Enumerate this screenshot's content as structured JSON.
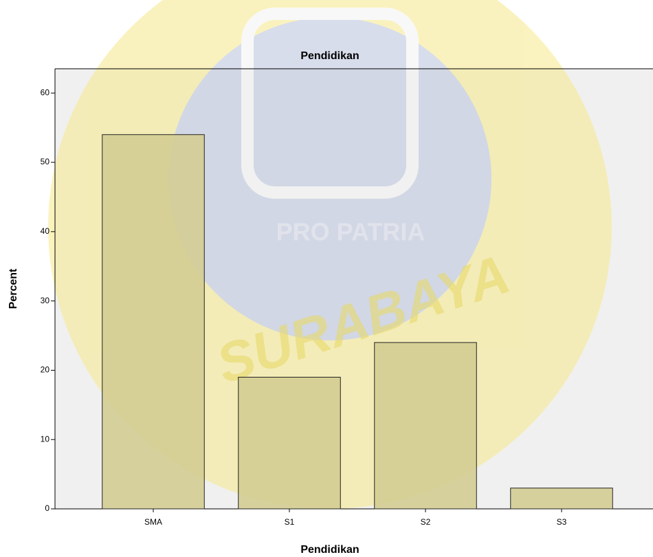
{
  "chart_data": {
    "type": "bar",
    "title": "Pendidikan",
    "x_label": "Pendidikan",
    "y_label": "Percent",
    "categories": [
      "SMA",
      "S1",
      "S2",
      "S3"
    ],
    "values": [
      54,
      19,
      24,
      3
    ],
    "color": "#d3cd92",
    "ylim": [
      0,
      63.5
    ],
    "yticks": [
      0,
      10,
      20,
      30,
      40,
      50,
      60
    ],
    "grid": false
  },
  "watermark": [
    "PRO PATRIA",
    "SURABAYA"
  ]
}
